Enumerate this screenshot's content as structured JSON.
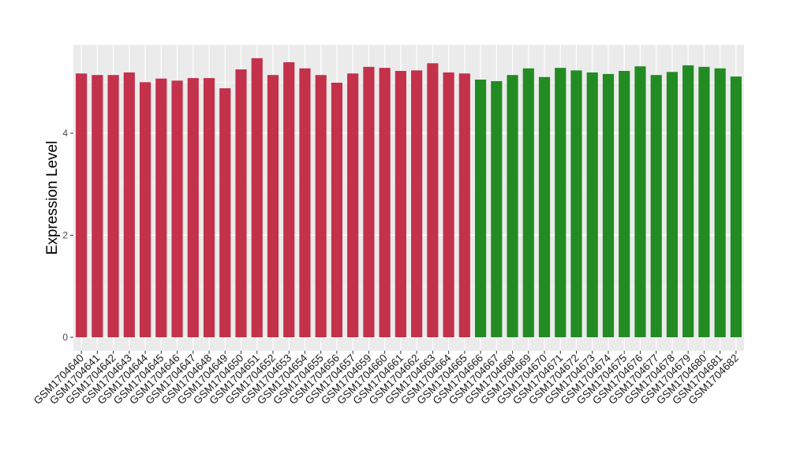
{
  "chart_data": {
    "type": "bar",
    "title": "",
    "xlabel": "",
    "ylabel": "Expression Level",
    "ylim": [
      0,
      5.7
    ],
    "yticks": [
      0,
      2,
      4
    ],
    "grid": true,
    "legend": "none",
    "colors": {
      "group1": "#C3314A",
      "group2": "#228B22",
      "panel": "#EBEBEB",
      "grid": "#FFFFFF"
    },
    "categories": [
      "GSM1704640",
      "GSM1704641",
      "GSM1704642",
      "GSM1704643",
      "GSM1704644",
      "GSM1704645",
      "GSM1704646",
      "GSM1704647",
      "GSM1704648",
      "GSM1704649",
      "GSM1704650",
      "GSM1704651",
      "GSM1704652",
      "GSM1704653",
      "GSM1704654",
      "GSM1704655",
      "GSM1704656",
      "GSM1704657",
      "GSM1704659",
      "GSM1704660",
      "GSM1704661",
      "GSM1704662",
      "GSM1704663",
      "GSM1704664",
      "GSM1704665",
      "GSM1704666",
      "GSM1704667",
      "GSM1704668",
      "GSM1704669",
      "GSM1704670",
      "GSM1704671",
      "GSM1704672",
      "GSM1704673",
      "GSM1704674",
      "GSM1704675",
      "GSM1704676",
      "GSM1704677",
      "GSM1704678",
      "GSM1704679",
      "GSM1704680",
      "GSM1704681",
      "GSM1704682"
    ],
    "values": [
      5.17,
      5.14,
      5.14,
      5.19,
      5.0,
      5.07,
      5.03,
      5.08,
      5.08,
      4.88,
      5.25,
      5.47,
      5.14,
      5.39,
      5.27,
      5.14,
      4.99,
      5.17,
      5.3,
      5.28,
      5.22,
      5.23,
      5.37,
      5.19,
      5.17,
      5.05,
      5.02,
      5.14,
      5.27,
      5.1,
      5.28,
      5.23,
      5.19,
      5.16,
      5.22,
      5.31,
      5.14,
      5.2,
      5.33,
      5.3,
      5.27,
      5.11
    ],
    "groups": [
      "group1",
      "group1",
      "group1",
      "group1",
      "group1",
      "group1",
      "group1",
      "group1",
      "group1",
      "group1",
      "group1",
      "group1",
      "group1",
      "group1",
      "group1",
      "group1",
      "group1",
      "group1",
      "group1",
      "group1",
      "group1",
      "group1",
      "group1",
      "group1",
      "group1",
      "group2",
      "group2",
      "group2",
      "group2",
      "group2",
      "group2",
      "group2",
      "group2",
      "group2",
      "group2",
      "group2",
      "group2",
      "group2",
      "group2",
      "group2",
      "group2",
      "group2"
    ]
  }
}
